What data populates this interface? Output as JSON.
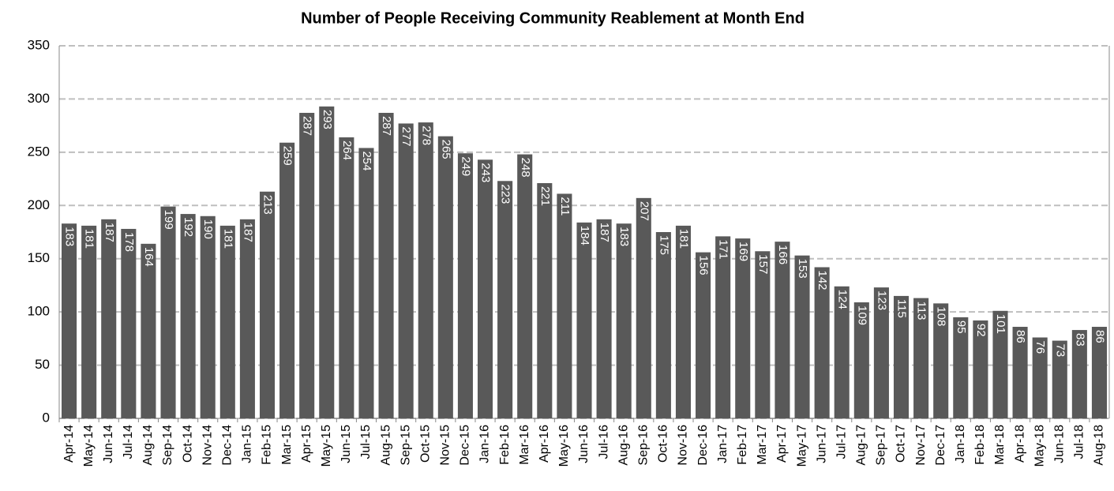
{
  "chart_data": {
    "type": "bar",
    "title": "Number of People Receiving Community Reablement at Month End",
    "categories": [
      "Apr-14",
      "May-14",
      "Jun-14",
      "Jul-14",
      "Aug-14",
      "Sep-14",
      "Oct-14",
      "Nov-14",
      "Dec-14",
      "Jan-15",
      "Feb-15",
      "Mar-15",
      "Apr-15",
      "May-15",
      "Jun-15",
      "Jul-15",
      "Aug-15",
      "Sep-15",
      "Oct-15",
      "Nov-15",
      "Dec-15",
      "Jan-16",
      "Feb-16",
      "Mar-16",
      "Apr-16",
      "May-16",
      "Jun-16",
      "Jul-16",
      "Aug-16",
      "Sep-16",
      "Oct-16",
      "Nov-16",
      "Dec-16",
      "Jan-17",
      "Feb-17",
      "Mar-17",
      "Apr-17",
      "May-17",
      "Jun-17",
      "Jul-17",
      "Aug-17",
      "Sep-17",
      "Oct-17",
      "Nov-17",
      "Dec-17",
      "Jan-18",
      "Feb-18",
      "Mar-18",
      "Apr-18",
      "May-18",
      "Jun-18",
      "Jul-18",
      "Aug-18"
    ],
    "values": [
      183,
      181,
      187,
      178,
      164,
      199,
      192,
      190,
      181,
      187,
      213,
      259,
      287,
      293,
      264,
      254,
      287,
      277,
      278,
      265,
      249,
      243,
      223,
      248,
      221,
      211,
      184,
      187,
      183,
      207,
      175,
      181,
      156,
      171,
      169,
      157,
      166,
      153,
      142,
      124,
      109,
      123,
      115,
      113,
      108,
      95,
      92,
      101,
      86,
      76,
      73,
      83,
      86
    ],
    "color": "#595959",
    "ylim": [
      0,
      350
    ],
    "yticks": [
      0,
      50,
      100,
      150,
      200,
      250,
      300,
      350
    ],
    "grid": true
  }
}
